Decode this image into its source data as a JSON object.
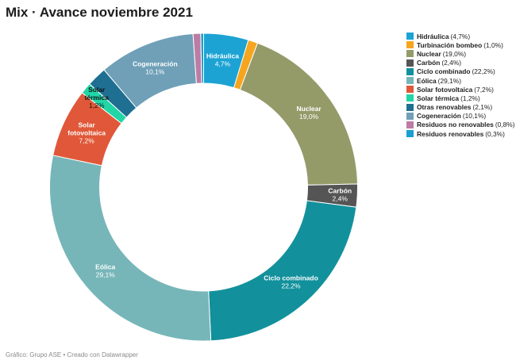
{
  "title": "Mix · Avance noviembre 2021",
  "footer": "Gráfico: Grupo ASE • Creado con Datawrapper",
  "chart_data": {
    "type": "donut",
    "title": "Mix · Avance noviembre 2021",
    "legend_position": "right",
    "series": [
      {
        "name": "Hidráulica",
        "value": 4.7,
        "label": "4,7%",
        "color": "#1ca3d4"
      },
      {
        "name": "Turbinación bombeo",
        "value": 1.0,
        "label": "1,0%",
        "color": "#f6a51f"
      },
      {
        "name": "Nuclear",
        "value": 19.0,
        "label": "19,0%",
        "color": "#949b69"
      },
      {
        "name": "Carbón",
        "value": 2.4,
        "label": "2,4%",
        "color": "#555555"
      },
      {
        "name": "Ciclo combinado",
        "value": 22.2,
        "label": "22,2%",
        "color": "#12919c"
      },
      {
        "name": "Eólica",
        "value": 29.1,
        "label": "29,1%",
        "color": "#76b6b9"
      },
      {
        "name": "Solar fotovoltaica",
        "value": 7.2,
        "label": "7,2%",
        "color": "#e05839"
      },
      {
        "name": "Solar térmica",
        "value": 1.2,
        "label": "1,2%",
        "color": "#20d6a7"
      },
      {
        "name": "Otras renovables",
        "value": 2.1,
        "label": "2,1%",
        "color": "#1f6f92"
      },
      {
        "name": "Cogeneración",
        "value": 10.1,
        "label": "10,1%",
        "color": "#6fa0b8"
      },
      {
        "name": "Residuos no renovables",
        "value": 0.8,
        "label": "0,8%",
        "color": "#bd7ca3"
      },
      {
        "name": "Residuos renovables",
        "value": 0.3,
        "label": "0,3%",
        "color": "#1a9fd0"
      }
    ],
    "slice_labels": [
      {
        "name": "Hidráulica",
        "name_lines": [
          "Hidráulica"
        ],
        "pct": "4,7%",
        "dark": false
      },
      {
        "name": "Nuclear",
        "name_lines": [
          "Nuclear"
        ],
        "pct": "19,0%",
        "dark": false
      },
      {
        "name": "Carbón",
        "name_lines": [
          "Carbón"
        ],
        "pct": "2,4%",
        "dark": false
      },
      {
        "name": "Ciclo combinado",
        "name_lines": [
          "Ciclo combinado"
        ],
        "pct": "22,2%",
        "dark": false
      },
      {
        "name": "Eólica",
        "name_lines": [
          "Eólica"
        ],
        "pct": "29,1%",
        "dark": false
      },
      {
        "name": "Solar fotovoltaica",
        "name_lines": [
          "Solar",
          "fotovoltaica"
        ],
        "pct": "7,2%",
        "dark": false
      },
      {
        "name": "Solar térmica",
        "name_lines": [
          "Solar",
          "térmica"
        ],
        "pct": "1,2%",
        "dark": true
      },
      {
        "name": "Cogeneración",
        "name_lines": [
          "Cogeneración"
        ],
        "pct": "10,1%",
        "dark": false
      }
    ]
  }
}
